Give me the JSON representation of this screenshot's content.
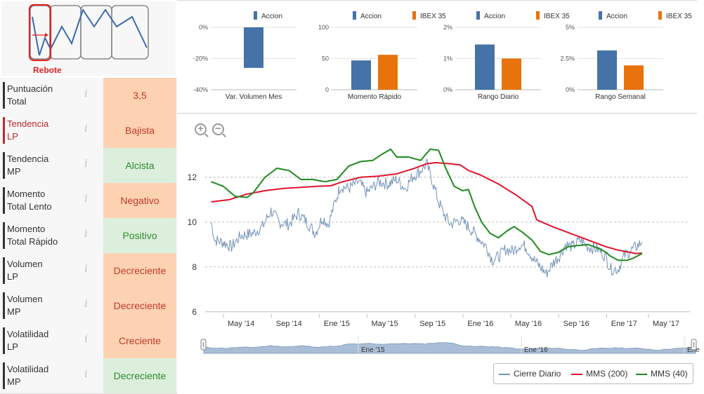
{
  "logo": {
    "label": "Rebote"
  },
  "indicators": [
    {
      "label_lines": [
        "Puntuación",
        "Total"
      ],
      "value": "3,5",
      "sentiment": "neg",
      "highlight": false
    },
    {
      "label_lines": [
        "Tendencia",
        "LP"
      ],
      "value": "Bajista",
      "sentiment": "neg",
      "highlight": true
    },
    {
      "label_lines": [
        "Tendencia",
        "MP"
      ],
      "value": "Alcista",
      "sentiment": "pos",
      "highlight": false
    },
    {
      "label_lines": [
        "Momento",
        "Total Lento"
      ],
      "value": "Negativo",
      "sentiment": "neg",
      "highlight": false
    },
    {
      "label_lines": [
        "Momento",
        "Total Rápido"
      ],
      "value": "Positivo",
      "sentiment": "pos",
      "highlight": false
    },
    {
      "label_lines": [
        "Volumen",
        "LP"
      ],
      "value": "Decreciente",
      "sentiment": "neg",
      "highlight": false
    },
    {
      "label_lines": [
        "Volumen",
        "MP"
      ],
      "value": "Decreciente",
      "sentiment": "neg",
      "highlight": false
    },
    {
      "label_lines": [
        "Volatilidad",
        "LP"
      ],
      "value": "Creciente",
      "sentiment": "neg",
      "highlight": false
    },
    {
      "label_lines": [
        "Volatilidad",
        "MP"
      ],
      "value": "Decreciente",
      "sentiment": "pos",
      "highlight": false
    }
  ],
  "info_glyph": "i",
  "colors": {
    "accion": "#4572a7",
    "ibex": "#e8720c",
    "close": "#7393b8",
    "mms200": "#e0142c",
    "mms40": "#1f8a1f"
  },
  "chart_data": [
    {
      "type": "bar",
      "title": "Var. Volumen Mes",
      "legend": [
        "Accion"
      ],
      "series": [
        {
          "name": "Accion",
          "values": [
            -26
          ]
        }
      ],
      "ylim": [
        -40,
        0
      ],
      "ticks": [
        "0%",
        "-20%",
        "-40%"
      ],
      "tick_values": [
        0,
        -20,
        -40
      ]
    },
    {
      "type": "bar",
      "title": "Momento Rápido",
      "legend": [
        "Accion",
        "IBEX 35"
      ],
      "series": [
        {
          "name": "Accion",
          "values": [
            47
          ]
        },
        {
          "name": "IBEX 35",
          "values": [
            56
          ]
        }
      ],
      "ylim": [
        0,
        100
      ],
      "ticks": [
        "100",
        "50",
        "0"
      ],
      "tick_values": [
        100,
        50,
        0
      ]
    },
    {
      "type": "bar",
      "title": "Rango Diario",
      "legend": [
        "Accion",
        "IBEX 35"
      ],
      "series": [
        {
          "name": "Accion",
          "values": [
            1.45
          ]
        },
        {
          "name": "IBEX 35",
          "values": [
            1.0
          ]
        }
      ],
      "ylim": [
        0,
        2
      ],
      "ticks": [
        "2%",
        "1%",
        "0%"
      ],
      "tick_values": [
        2,
        1,
        0
      ]
    },
    {
      "type": "bar",
      "title": "Rango Semanal",
      "legend": [
        "Accion",
        "IBEX 35"
      ],
      "series": [
        {
          "name": "Accion",
          "values": [
            3.15
          ]
        },
        {
          "name": "IBEX 35",
          "values": [
            1.95
          ]
        }
      ],
      "ylim": [
        0,
        5
      ],
      "ticks": [
        "5%",
        "2.5%",
        "0%"
      ],
      "tick_values": [
        5,
        2.5,
        0
      ]
    },
    {
      "type": "line",
      "title": "",
      "x_labels": [
        "May '14",
        "Sep '14",
        "Ene '15",
        "May '15",
        "Sep '15",
        "Ene '16",
        "May '16",
        "Sep '16",
        "Ene '17",
        "May '17"
      ],
      "x_label_pos": [
        0.5,
        4.5,
        8.5,
        12.5,
        16.5,
        20.5,
        24.5,
        28.5,
        32.5,
        36.0
      ],
      "xlim": [
        -2.5,
        38
      ],
      "ylim": [
        5.9,
        13.4
      ],
      "y_ticks": [
        6,
        8,
        10,
        12
      ],
      "y_tick_labels": [
        "6",
        "8",
        "10",
        "12"
      ],
      "series": [
        {
          "name": "Cierre Diario",
          "anchors": [
            [
              -2.0,
              10.0
            ],
            [
              -1.7,
              9.2
            ],
            [
              -1.0,
              9.1
            ],
            [
              -0.3,
              8.9
            ],
            [
              0.5,
              9.4
            ],
            [
              1.5,
              9.5
            ],
            [
              2.3,
              9.8
            ],
            [
              3.0,
              10.5
            ],
            [
              3.7,
              10.0
            ],
            [
              4.5,
              9.9
            ],
            [
              5.3,
              10.4
            ],
            [
              6.0,
              10.0
            ],
            [
              6.7,
              9.5
            ],
            [
              7.3,
              10.2
            ],
            [
              7.8,
              9.9
            ],
            [
              8.3,
              10.8
            ],
            [
              8.8,
              11.6
            ],
            [
              9.5,
              11.5
            ],
            [
              10.3,
              11.8
            ],
            [
              11.0,
              11.3
            ],
            [
              12.0,
              11.8
            ],
            [
              12.8,
              11.7
            ],
            [
              13.5,
              11.9
            ],
            [
              14.2,
              11.5
            ],
            [
              14.8,
              12.0
            ],
            [
              15.5,
              12.3
            ],
            [
              16.0,
              12.6
            ],
            [
              16.5,
              11.8
            ],
            [
              17.0,
              10.9
            ],
            [
              17.5,
              10.3
            ],
            [
              18.0,
              9.9
            ],
            [
              18.7,
              10.1
            ],
            [
              19.3,
              9.9
            ],
            [
              20.0,
              9.5
            ],
            [
              20.5,
              9.2
            ],
            [
              21.0,
              8.9
            ],
            [
              21.5,
              8.3
            ],
            [
              22.1,
              8.5
            ],
            [
              22.6,
              8.8
            ],
            [
              23.2,
              8.7
            ],
            [
              23.8,
              9.0
            ],
            [
              24.3,
              8.9
            ],
            [
              25.0,
              8.3
            ],
            [
              25.5,
              8.0
            ],
            [
              26.0,
              7.7
            ],
            [
              26.6,
              8.2
            ],
            [
              27.1,
              8.5
            ],
            [
              27.6,
              9.0
            ],
            [
              28.2,
              8.9
            ],
            [
              28.8,
              9.2
            ],
            [
              29.5,
              8.9
            ],
            [
              30.3,
              8.8
            ],
            [
              30.9,
              8.5
            ],
            [
              31.4,
              7.9
            ],
            [
              32.0,
              7.9
            ],
            [
              32.5,
              8.5
            ],
            [
              33.0,
              8.7
            ],
            [
              33.5,
              8.9
            ],
            [
              34.0,
              9.1
            ]
          ]
        },
        {
          "name": "MMS (200)",
          "anchors": [
            [
              -2.0,
              10.9
            ],
            [
              -0.5,
              11.0
            ],
            [
              1.0,
              11.25
            ],
            [
              2.5,
              11.4
            ],
            [
              4.0,
              11.5
            ],
            [
              5.5,
              11.55
            ],
            [
              7.0,
              11.6
            ],
            [
              8.0,
              11.62
            ],
            [
              9.0,
              11.8
            ],
            [
              10.5,
              12.0
            ],
            [
              12.0,
              12.05
            ],
            [
              13.5,
              12.15
            ],
            [
              15.0,
              12.4
            ],
            [
              16.0,
              12.6
            ],
            [
              16.8,
              12.65
            ],
            [
              18.0,
              12.6
            ],
            [
              18.8,
              12.55
            ],
            [
              19.5,
              12.3
            ],
            [
              20.5,
              12.1
            ],
            [
              22.0,
              11.7
            ],
            [
              23.5,
              11.2
            ],
            [
              24.8,
              10.7
            ],
            [
              25.2,
              10.1
            ],
            [
              26.5,
              9.8
            ],
            [
              28.0,
              9.5
            ],
            [
              29.5,
              9.2
            ],
            [
              31.0,
              8.9
            ],
            [
              32.0,
              8.75
            ],
            [
              33.0,
              8.65
            ],
            [
              33.5,
              8.6
            ],
            [
              34.0,
              8.62
            ]
          ]
        },
        {
          "name": "MMS (40)",
          "anchors": [
            [
              -2.0,
              11.8
            ],
            [
              -1.0,
              11.6
            ],
            [
              0.0,
              11.15
            ],
            [
              1.0,
              11.1
            ],
            [
              1.5,
              11.3
            ],
            [
              2.5,
              12.0
            ],
            [
              3.5,
              12.4
            ],
            [
              4.5,
              12.3
            ],
            [
              5.5,
              11.9
            ],
            [
              6.5,
              11.9
            ],
            [
              7.5,
              11.8
            ],
            [
              8.5,
              11.9
            ],
            [
              9.5,
              12.5
            ],
            [
              10.5,
              12.7
            ],
            [
              11.5,
              12.75
            ],
            [
              12.2,
              13.0
            ],
            [
              13.0,
              13.25
            ],
            [
              13.5,
              12.9
            ],
            [
              14.5,
              12.9
            ],
            [
              15.5,
              12.75
            ],
            [
              16.3,
              13.25
            ],
            [
              17.0,
              13.2
            ],
            [
              17.6,
              12.4
            ],
            [
              18.3,
              11.6
            ],
            [
              19.0,
              11.4
            ],
            [
              19.5,
              11.45
            ],
            [
              20.0,
              10.7
            ],
            [
              20.6,
              10.0
            ],
            [
              21.3,
              9.5
            ],
            [
              22.0,
              9.3
            ],
            [
              22.7,
              9.6
            ],
            [
              23.3,
              9.8
            ],
            [
              24.0,
              9.55
            ],
            [
              24.8,
              9.2
            ],
            [
              25.5,
              8.7
            ],
            [
              26.2,
              8.55
            ],
            [
              27.0,
              8.65
            ],
            [
              27.8,
              8.9
            ],
            [
              28.5,
              8.95
            ],
            [
              29.5,
              9.0
            ],
            [
              30.5,
              8.8
            ],
            [
              31.0,
              8.65
            ],
            [
              31.3,
              8.5
            ],
            [
              32.0,
              8.3
            ],
            [
              32.8,
              8.3
            ],
            [
              33.3,
              8.4
            ],
            [
              34.0,
              8.6
            ]
          ]
        }
      ],
      "legend": [
        "Cierre Diario",
        "MMS (200)",
        "MMS (40)"
      ],
      "navigator_labels": [
        "Ene '15",
        "Ene '16",
        "Ene"
      ]
    }
  ]
}
